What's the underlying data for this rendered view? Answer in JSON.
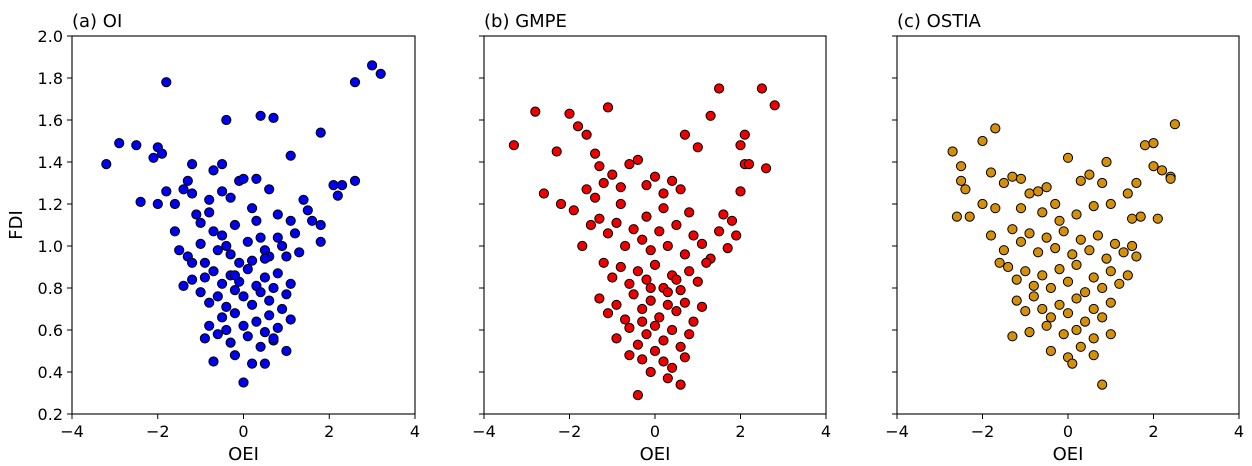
{
  "chart_data": [
    {
      "type": "scatter",
      "title": "(a) OI",
      "xlabel": "OEI",
      "ylabel": "FDI",
      "xlim": [
        -4,
        4
      ],
      "ylim": [
        0.2,
        2.0
      ],
      "xticks": [
        -4,
        -2,
        0,
        2,
        4
      ],
      "yticks": [
        0.2,
        0.4,
        0.6,
        0.8,
        1.0,
        1.2,
        1.4,
        1.6,
        1.8,
        2.0
      ],
      "show_ytick_labels": true,
      "grid": false,
      "color": "#0000ee",
      "points": [
        [
          -3.2,
          1.39
        ],
        [
          -2.9,
          1.49
        ],
        [
          -2.5,
          1.48
        ],
        [
          -2.1,
          1.42
        ],
        [
          -2.0,
          1.47
        ],
        [
          -1.9,
          1.44
        ],
        [
          -1.8,
          1.78
        ],
        [
          -2.4,
          1.21
        ],
        [
          -2.0,
          1.2
        ],
        [
          -1.6,
          1.2
        ],
        [
          -1.8,
          1.26
        ],
        [
          -1.4,
          1.27
        ],
        [
          -1.2,
          1.25
        ],
        [
          -1.3,
          1.31
        ],
        [
          -1.2,
          1.39
        ],
        [
          -0.8,
          1.22
        ],
        [
          -0.5,
          1.26
        ],
        [
          -0.3,
          1.23
        ],
        [
          -0.1,
          1.31
        ],
        [
          0.0,
          1.32
        ],
        [
          0.3,
          1.32
        ],
        [
          0.6,
          1.27
        ],
        [
          -0.4,
          1.6
        ],
        [
          0.4,
          1.62
        ],
        [
          0.7,
          1.61
        ],
        [
          -0.7,
          1.36
        ],
        [
          -0.5,
          1.39
        ],
        [
          1.1,
          1.43
        ],
        [
          1.8,
          1.54
        ],
        [
          2.1,
          1.29
        ],
        [
          2.3,
          1.29
        ],
        [
          2.6,
          1.31
        ],
        [
          2.6,
          1.78
        ],
        [
          3.0,
          1.86
        ],
        [
          3.2,
          1.82
        ],
        [
          1.4,
          1.22
        ],
        [
          1.5,
          1.17
        ],
        [
          1.6,
          1.12
        ],
        [
          1.8,
          1.1
        ],
        [
          1.8,
          1.02
        ],
        [
          2.2,
          1.24
        ],
        [
          -1.6,
          1.07
        ],
        [
          -1.5,
          0.98
        ],
        [
          -1.3,
          0.95
        ],
        [
          -1.2,
          0.92
        ],
        [
          -1.0,
          1.11
        ],
        [
          -1.0,
          1.01
        ],
        [
          -0.9,
          0.92
        ],
        [
          -0.8,
          1.16
        ],
        [
          -0.7,
          1.07
        ],
        [
          -0.6,
          0.98
        ],
        [
          -0.5,
          1.05
        ],
        [
          -0.4,
          1.0
        ],
        [
          -0.3,
          0.96
        ],
        [
          -0.2,
          1.1
        ],
        [
          -0.1,
          0.92
        ],
        [
          0.1,
          1.02
        ],
        [
          0.2,
          0.93
        ],
        [
          0.3,
          1.12
        ],
        [
          0.4,
          1.04
        ],
        [
          0.5,
          0.98
        ],
        [
          0.6,
          0.95
        ],
        [
          0.8,
          1.04
        ],
        [
          0.9,
          1.0
        ],
        [
          1.0,
          0.95
        ],
        [
          1.1,
          1.12
        ],
        [
          1.2,
          1.06
        ],
        [
          1.3,
          0.97
        ],
        [
          -1.4,
          0.81
        ],
        [
          -1.2,
          0.84
        ],
        [
          -1.0,
          0.78
        ],
        [
          -0.9,
          0.85
        ],
        [
          -0.8,
          0.73
        ],
        [
          -0.7,
          0.88
        ],
        [
          -0.6,
          0.76
        ],
        [
          -0.5,
          0.82
        ],
        [
          -0.4,
          0.71
        ],
        [
          -0.3,
          0.86
        ],
        [
          -0.2,
          0.79
        ],
        [
          -0.1,
          0.83
        ],
        [
          0.0,
          0.76
        ],
        [
          0.1,
          0.89
        ],
        [
          0.2,
          0.72
        ],
        [
          0.3,
          0.81
        ],
        [
          0.4,
          0.78
        ],
        [
          0.5,
          0.85
        ],
        [
          0.6,
          0.74
        ],
        [
          0.7,
          0.8
        ],
        [
          0.8,
          0.87
        ],
        [
          0.9,
          0.7
        ],
        [
          1.0,
          0.77
        ],
        [
          1.1,
          0.82
        ],
        [
          -0.9,
          0.56
        ],
        [
          -0.8,
          0.62
        ],
        [
          -0.6,
          0.58
        ],
        [
          -0.5,
          0.66
        ],
        [
          -0.4,
          0.6
        ],
        [
          -0.3,
          0.54
        ],
        [
          -0.2,
          0.68
        ],
        [
          0.0,
          0.62
        ],
        [
          0.1,
          0.57
        ],
        [
          0.3,
          0.64
        ],
        [
          0.4,
          0.52
        ],
        [
          0.5,
          0.59
        ],
        [
          0.6,
          0.67
        ],
        [
          0.7,
          0.55
        ],
        [
          0.8,
          0.61
        ],
        [
          1.0,
          0.5
        ],
        [
          1.1,
          0.65
        ],
        [
          -0.7,
          0.45
        ],
        [
          -0.2,
          0.48
        ],
        [
          0.0,
          0.35
        ],
        [
          0.2,
          0.44
        ],
        [
          0.5,
          0.44
        ],
        [
          0.7,
          0.56
        ],
        [
          -0.2,
          0.86
        ],
        [
          0.5,
          0.94
        ],
        [
          0.2,
          1.18
        ],
        [
          -1.1,
          1.15
        ],
        [
          0.8,
          1.15
        ]
      ]
    },
    {
      "type": "scatter",
      "title": "(b) GMPE",
      "xlabel": "OEI",
      "ylabel": "",
      "xlim": [
        -4,
        4
      ],
      "ylim": [
        0.2,
        2.0
      ],
      "xticks": [
        -4,
        -2,
        0,
        2,
        4
      ],
      "yticks": [
        0.2,
        0.4,
        0.6,
        0.8,
        1.0,
        1.2,
        1.4,
        1.6,
        1.8,
        2.0
      ],
      "show_ytick_labels": false,
      "grid": false,
      "color": "#ee0000",
      "points": [
        [
          -3.3,
          1.48
        ],
        [
          -2.8,
          1.64
        ],
        [
          -2.0,
          1.63
        ],
        [
          -1.1,
          1.66
        ],
        [
          -2.3,
          1.45
        ],
        [
          -1.8,
          1.57
        ],
        [
          -1.6,
          1.53
        ],
        [
          -1.4,
          1.44
        ],
        [
          -1.3,
          1.38
        ],
        [
          -2.6,
          1.25
        ],
        [
          -2.2,
          1.2
        ],
        [
          -1.9,
          1.17
        ],
        [
          -1.6,
          1.27
        ],
        [
          -1.4,
          1.23
        ],
        [
          -1.2,
          1.3
        ],
        [
          -1.0,
          1.34
        ],
        [
          -0.8,
          1.28
        ],
        [
          -0.6,
          1.39
        ],
        [
          -0.4,
          1.41
        ],
        [
          -0.2,
          1.29
        ],
        [
          0.0,
          1.33
        ],
        [
          0.2,
          1.25
        ],
        [
          0.4,
          1.31
        ],
        [
          0.7,
          1.53
        ],
        [
          1.0,
          1.47
        ],
        [
          1.3,
          1.62
        ],
        [
          1.5,
          1.75
        ],
        [
          2.0,
          1.48
        ],
        [
          2.5,
          1.75
        ],
        [
          2.8,
          1.67
        ],
        [
          2.1,
          1.39
        ],
        [
          2.2,
          1.39
        ],
        [
          2.6,
          1.37
        ],
        [
          2.0,
          1.26
        ],
        [
          2.1,
          1.53
        ],
        [
          1.6,
          1.15
        ],
        [
          1.8,
          1.12
        ],
        [
          1.9,
          1.05
        ],
        [
          -1.5,
          1.1
        ],
        [
          -1.3,
          1.13
        ],
        [
          -1.1,
          1.06
        ],
        [
          -0.9,
          1.11
        ],
        [
          -0.7,
          1.0
        ],
        [
          -0.5,
          1.08
        ],
        [
          -0.3,
          1.03
        ],
        [
          -0.1,
          0.98
        ],
        [
          0.1,
          1.07
        ],
        [
          0.3,
          1.0
        ],
        [
          0.5,
          1.1
        ],
        [
          0.7,
          0.96
        ],
        [
          0.9,
          1.05
        ],
        [
          1.1,
          1.01
        ],
        [
          1.3,
          0.94
        ],
        [
          1.5,
          1.07
        ],
        [
          1.7,
          0.99
        ],
        [
          -1.2,
          0.92
        ],
        [
          -1.0,
          0.85
        ],
        [
          -0.8,
          0.9
        ],
        [
          -0.6,
          0.82
        ],
        [
          -0.4,
          0.88
        ],
        [
          -0.2,
          0.84
        ],
        [
          0.0,
          0.91
        ],
        [
          0.2,
          0.8
        ],
        [
          0.4,
          0.86
        ],
        [
          0.6,
          0.79
        ],
        [
          0.8,
          0.88
        ],
        [
          1.0,
          0.83
        ],
        [
          1.2,
          0.92
        ],
        [
          -1.3,
          0.75
        ],
        [
          -1.1,
          0.68
        ],
        [
          -0.9,
          0.72
        ],
        [
          -0.7,
          0.65
        ],
        [
          -0.5,
          0.77
        ],
        [
          -0.3,
          0.7
        ],
        [
          -0.1,
          0.74
        ],
        [
          0.1,
          0.66
        ],
        [
          0.3,
          0.78
        ],
        [
          0.5,
          0.69
        ],
        [
          0.7,
          0.73
        ],
        [
          0.9,
          0.64
        ],
        [
          1.1,
          0.71
        ],
        [
          -0.9,
          0.56
        ],
        [
          -0.6,
          0.61
        ],
        [
          -0.4,
          0.53
        ],
        [
          -0.2,
          0.58
        ],
        [
          0.0,
          0.62
        ],
        [
          0.2,
          0.55
        ],
        [
          0.4,
          0.6
        ],
        [
          0.6,
          0.52
        ],
        [
          0.8,
          0.58
        ],
        [
          -0.6,
          0.48
        ],
        [
          -0.3,
          0.46
        ],
        [
          0.0,
          0.5
        ],
        [
          0.2,
          0.45
        ],
        [
          0.4,
          0.42
        ],
        [
          0.7,
          0.47
        ],
        [
          -0.1,
          0.4
        ],
        [
          0.3,
          0.37
        ],
        [
          0.6,
          0.34
        ],
        [
          -0.4,
          0.29
        ],
        [
          -0.8,
          1.2
        ],
        [
          0.2,
          1.18
        ],
        [
          -0.2,
          1.14
        ],
        [
          0.8,
          1.16
        ],
        [
          -1.7,
          1.0
        ],
        [
          0.6,
          1.27
        ],
        [
          -0.1,
          0.8
        ],
        [
          0.3,
          0.72
        ],
        [
          -0.3,
          0.64
        ],
        [
          0.5,
          0.84
        ]
      ]
    },
    {
      "type": "scatter",
      "title": "(c) OSTIA",
      "xlabel": "OEI",
      "ylabel": "",
      "xlim": [
        -4,
        4
      ],
      "ylim": [
        0.2,
        2.0
      ],
      "xticks": [
        -4,
        -2,
        0,
        2,
        4
      ],
      "yticks": [
        0.2,
        0.4,
        0.6,
        0.8,
        1.0,
        1.2,
        1.4,
        1.6,
        1.8,
        2.0
      ],
      "show_ytick_labels": false,
      "grid": false,
      "color": "#d4900a",
      "points": [
        [
          -2.7,
          1.45
        ],
        [
          -2.5,
          1.38
        ],
        [
          -2.0,
          1.5
        ],
        [
          -1.7,
          1.56
        ],
        [
          -1.8,
          1.35
        ],
        [
          -2.5,
          1.31
        ],
        [
          -2.4,
          1.27
        ],
        [
          -2.6,
          1.14
        ],
        [
          -2.3,
          1.14
        ],
        [
          -2.0,
          1.2
        ],
        [
          -1.7,
          1.18
        ],
        [
          -1.5,
          1.3
        ],
        [
          -1.3,
          1.33
        ],
        [
          -1.1,
          1.32
        ],
        [
          -0.9,
          1.25
        ],
        [
          -0.7,
          1.26
        ],
        [
          -0.5,
          1.28
        ],
        [
          -0.3,
          1.2
        ],
        [
          0.0,
          1.42
        ],
        [
          0.3,
          1.31
        ],
        [
          0.5,
          1.34
        ],
        [
          0.8,
          1.3
        ],
        [
          0.9,
          1.4
        ],
        [
          1.4,
          1.25
        ],
        [
          1.6,
          1.3
        ],
        [
          1.8,
          1.48
        ],
        [
          2.0,
          1.49
        ],
        [
          2.0,
          1.38
        ],
        [
          2.2,
          1.36
        ],
        [
          2.5,
          1.58
        ],
        [
          2.4,
          1.33
        ],
        [
          2.4,
          1.32
        ],
        [
          1.5,
          1.13
        ],
        [
          1.7,
          1.14
        ],
        [
          2.1,
          1.13
        ],
        [
          -1.8,
          1.05
        ],
        [
          -1.5,
          0.98
        ],
        [
          -1.3,
          1.08
        ],
        [
          -1.1,
          1.02
        ],
        [
          -0.9,
          1.06
        ],
        [
          -0.7,
          0.97
        ],
        [
          -0.5,
          1.04
        ],
        [
          -0.3,
          0.99
        ],
        [
          -0.1,
          1.07
        ],
        [
          0.1,
          0.96
        ],
        [
          0.3,
          1.03
        ],
        [
          0.5,
          0.98
        ],
        [
          0.7,
          1.05
        ],
        [
          0.9,
          0.94
        ],
        [
          1.1,
          1.01
        ],
        [
          1.3,
          0.97
        ],
        [
          1.5,
          1.0
        ],
        [
          -1.4,
          0.9
        ],
        [
          -1.2,
          0.84
        ],
        [
          -1.0,
          0.88
        ],
        [
          -0.8,
          0.81
        ],
        [
          -0.6,
          0.86
        ],
        [
          -0.4,
          0.8
        ],
        [
          -0.2,
          0.89
        ],
        [
          0.0,
          0.83
        ],
        [
          0.2,
          0.91
        ],
        [
          0.4,
          0.78
        ],
        [
          0.6,
          0.85
        ],
        [
          0.8,
          0.8
        ],
        [
          1.0,
          0.88
        ],
        [
          1.2,
          0.82
        ],
        [
          1.4,
          0.86
        ],
        [
          -1.2,
          0.74
        ],
        [
          -1.0,
          0.69
        ],
        [
          -0.8,
          0.76
        ],
        [
          -0.6,
          0.7
        ],
        [
          -0.4,
          0.66
        ],
        [
          -0.2,
          0.72
        ],
        [
          0.0,
          0.68
        ],
        [
          0.2,
          0.75
        ],
        [
          0.4,
          0.64
        ],
        [
          0.6,
          0.7
        ],
        [
          0.8,
          0.66
        ],
        [
          1.0,
          0.73
        ],
        [
          -1.3,
          0.57
        ],
        [
          -0.9,
          0.59
        ],
        [
          -0.5,
          0.62
        ],
        [
          -0.1,
          0.58
        ],
        [
          0.2,
          0.6
        ],
        [
          0.6,
          0.56
        ],
        [
          1.0,
          0.58
        ],
        [
          -0.4,
          0.5
        ],
        [
          0.0,
          0.47
        ],
        [
          0.3,
          0.52
        ],
        [
          0.6,
          0.48
        ],
        [
          0.1,
          0.44
        ],
        [
          0.8,
          0.34
        ],
        [
          -0.2,
          1.12
        ],
        [
          0.2,
          1.15
        ],
        [
          -0.6,
          1.16
        ],
        [
          0.6,
          1.19
        ],
        [
          -1.1,
          1.18
        ],
        [
          1.0,
          1.2
        ],
        [
          -1.6,
          0.92
        ],
        [
          1.6,
          0.95
        ]
      ]
    }
  ]
}
